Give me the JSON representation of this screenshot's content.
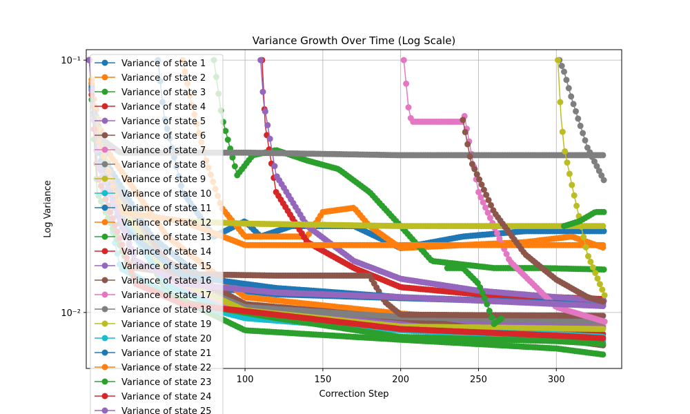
{
  "chart_data": {
    "type": "line",
    "title": "Variance Growth Over Time (Log Scale)",
    "xlabel": "Correction Step",
    "ylabel": "Log Variance",
    "y_scale": "log",
    "xlim": [
      -2,
      342
    ],
    "ylim": [
      0.006,
      0.11
    ],
    "grid": true,
    "legend_position": "upper-left",
    "x_ticks": [
      {
        "value": 100,
        "label": "100"
      },
      {
        "value": 150,
        "label": "150"
      },
      {
        "value": 200,
        "label": "200"
      },
      {
        "value": 250,
        "label": "250"
      },
      {
        "value": 300,
        "label": "300"
      }
    ],
    "y_ticks": [
      {
        "value": 0.1,
        "label": "10⁻¹"
      },
      {
        "value": 0.01,
        "label": "10⁻²"
      }
    ],
    "series": [
      {
        "name": "Variance of state 1",
        "color": "#1f77b4",
        "points": [
          [
            0,
            0.1
          ],
          [
            2,
            0.07
          ],
          [
            10,
            0.04
          ],
          [
            40,
            0.02
          ],
          [
            80,
            0.0125
          ],
          [
            120,
            0.0118
          ],
          [
            200,
            0.0114
          ],
          [
            331,
            0.0108
          ]
        ]
      },
      {
        "name": "Variance of state 2",
        "color": "#ff7f0e",
        "points": [
          [
            0,
            0.1
          ],
          [
            3,
            0.07
          ],
          [
            10,
            0.045
          ],
          [
            50,
            0.02
          ],
          [
            100,
            0.0115
          ],
          [
            200,
            0.0099
          ],
          [
            331,
            0.0088
          ]
        ]
      },
      {
        "name": "Variance of state 3",
        "color": "#2ca02c",
        "points": [
          [
            0,
            0.1
          ],
          [
            3,
            0.06
          ],
          [
            15,
            0.03
          ],
          [
            50,
            0.012
          ],
          [
            100,
            0.0085
          ],
          [
            200,
            0.0078
          ],
          [
            300,
            0.0072
          ],
          [
            331,
            0.0068
          ]
        ]
      },
      {
        "name": "Variance of state 4",
        "color": "#d62728",
        "points": [
          [
            0,
            0.1
          ],
          [
            3,
            0.065
          ],
          [
            15,
            0.03
          ],
          [
            50,
            0.015
          ],
          [
            100,
            0.0105
          ],
          [
            200,
            0.0088
          ],
          [
            331,
            0.0082
          ]
        ]
      },
      {
        "name": "Variance of state 5",
        "color": "#9467bd",
        "points": [
          [
            0,
            0.1
          ],
          [
            3,
            0.06
          ],
          [
            15,
            0.03
          ],
          [
            50,
            0.014
          ],
          [
            100,
            0.0105
          ],
          [
            200,
            0.0092
          ],
          [
            331,
            0.0087
          ]
        ]
      },
      {
        "name": "Variance of state 6",
        "color": "#8c564b",
        "points": [
          [
            0,
            0.1
          ],
          [
            3,
            0.065
          ],
          [
            15,
            0.03
          ],
          [
            50,
            0.016
          ],
          [
            100,
            0.0108
          ],
          [
            200,
            0.0095
          ],
          [
            331,
            0.0074
          ]
        ]
      },
      {
        "name": "Variance of state 7",
        "color": "#e377c2",
        "points": [
          [
            0,
            0.1
          ],
          [
            3,
            0.06
          ],
          [
            15,
            0.028
          ],
          [
            50,
            0.013
          ],
          [
            100,
            0.01
          ],
          [
            200,
            0.0088
          ],
          [
            331,
            0.0078
          ]
        ]
      },
      {
        "name": "Variance of state 8",
        "color": "#7f7f7f",
        "points": [
          [
            0,
            0.1
          ],
          [
            3,
            0.065
          ],
          [
            15,
            0.033
          ],
          [
            50,
            0.014
          ],
          [
            100,
            0.0105
          ],
          [
            200,
            0.0096
          ],
          [
            331,
            0.0092
          ]
        ]
      },
      {
        "name": "Variance of state 9",
        "color": "#bcbd22",
        "points": [
          [
            0,
            0.1
          ],
          [
            3,
            0.065
          ],
          [
            15,
            0.03
          ],
          [
            50,
            0.014
          ],
          [
            100,
            0.0102
          ],
          [
            200,
            0.0088
          ],
          [
            331,
            0.0086
          ]
        ]
      },
      {
        "name": "Variance of state 10",
        "color": "#17becf",
        "points": [
          [
            0,
            0.1
          ],
          [
            3,
            0.06
          ],
          [
            15,
            0.027
          ],
          [
            50,
            0.0128
          ],
          [
            100,
            0.0095
          ],
          [
            200,
            0.0085
          ],
          [
            331,
            0.0077
          ]
        ]
      },
      {
        "name": "Variance of state 11",
        "color": "#1f77b4",
        "points": [
          [
            44,
            0.1
          ],
          [
            48,
            0.06
          ],
          [
            60,
            0.03
          ],
          [
            80,
            0.02
          ],
          [
            100,
            0.023
          ],
          [
            110,
            0.02
          ],
          [
            130,
            0.022
          ],
          [
            170,
            0.022
          ],
          [
            200,
            0.018
          ],
          [
            240,
            0.02
          ],
          [
            280,
            0.021
          ],
          [
            331,
            0.021
          ]
        ]
      },
      {
        "name": "Variance of state 12",
        "color": "#ff7f0e",
        "points": [
          [
            60,
            0.1
          ],
          [
            65,
            0.07
          ],
          [
            75,
            0.04
          ],
          [
            85,
            0.026
          ],
          [
            100,
            0.02
          ],
          [
            140,
            0.02
          ],
          [
            150,
            0.025
          ],
          [
            170,
            0.026
          ],
          [
            180,
            0.022
          ],
          [
            200,
            0.018
          ],
          [
            280,
            0.019
          ],
          [
            310,
            0.02
          ],
          [
            331,
            0.018
          ]
        ]
      },
      {
        "name": "Variance of state 13",
        "color": "#2ca02c",
        "points": [
          [
            80,
            0.1
          ],
          [
            85,
            0.06
          ],
          [
            95,
            0.035
          ],
          [
            105,
            0.042
          ],
          [
            120,
            0.044
          ],
          [
            140,
            0.04
          ],
          [
            160,
            0.037
          ],
          [
            180,
            0.03
          ],
          [
            200,
            0.022
          ],
          [
            220,
            0.016
          ],
          [
            260,
            0.015
          ],
          [
            290,
            0.015
          ],
          [
            331,
            0.0148
          ]
        ]
      },
      {
        "name": "Variance of state 14",
        "color": "#d62728",
        "points": [
          [
            111,
            0.1
          ],
          [
            113,
            0.055
          ],
          [
            120,
            0.03
          ],
          [
            140,
            0.019
          ],
          [
            170,
            0.015
          ],
          [
            200,
            0.0126
          ],
          [
            250,
            0.0118
          ],
          [
            300,
            0.0115
          ],
          [
            331,
            0.0113
          ]
        ]
      },
      {
        "name": "Variance of state 15",
        "color": "#9467bd",
        "points": [
          [
            110,
            0.1
          ],
          [
            112,
            0.068
          ],
          [
            120,
            0.035
          ],
          [
            140,
            0.022
          ],
          [
            170,
            0.016
          ],
          [
            200,
            0.0136
          ],
          [
            250,
            0.0122
          ],
          [
            300,
            0.0115
          ],
          [
            331,
            0.0111
          ]
        ]
      },
      {
        "name": "Variance of state 16",
        "color": "#8c564b",
        "points": [
          [
            0,
            0.1
          ],
          [
            5,
            0.05
          ],
          [
            30,
            0.015
          ],
          [
            60,
            0.0142
          ],
          [
            120,
            0.014
          ],
          [
            180,
            0.014
          ],
          [
            190,
            0.011
          ],
          [
            200,
            0.0098
          ],
          [
            331,
            0.0097
          ]
        ]
      },
      {
        "name": "Variance of state 17",
        "color": "#e377c2",
        "points": [
          [
            202,
            0.1
          ],
          [
            205,
            0.065
          ],
          [
            207,
            0.057
          ],
          [
            240,
            0.057
          ],
          [
            241,
            0.06
          ],
          [
            250,
            0.03
          ],
          [
            270,
            0.016
          ],
          [
            300,
            0.0105
          ],
          [
            331,
            0.0092
          ]
        ]
      },
      {
        "name": "Variance of state 18",
        "color": "#7f7f7f",
        "points": [
          [
            0,
            0.1
          ],
          [
            5,
            0.05
          ],
          [
            20,
            0.043
          ],
          [
            100,
            0.043
          ],
          [
            200,
            0.042
          ],
          [
            331,
            0.042
          ]
        ]
      },
      {
        "name": "Variance of state 19",
        "color": "#bcbd22",
        "points": [
          [
            0,
            0.1
          ],
          [
            5,
            0.05
          ],
          [
            20,
            0.025
          ],
          [
            60,
            0.023
          ],
          [
            100,
            0.0225
          ],
          [
            200,
            0.022
          ],
          [
            300,
            0.022
          ],
          [
            331,
            0.022
          ]
        ]
      },
      {
        "name": "Variance of state 20",
        "color": "#17becf",
        "points": [
          [
            0,
            0.1
          ],
          [
            5,
            0.04
          ],
          [
            20,
            0.015
          ],
          [
            60,
            0.011
          ],
          [
            100,
            0.0095
          ],
          [
            200,
            0.0085
          ],
          [
            300,
            0.0082
          ],
          [
            331,
            0.008
          ]
        ]
      },
      {
        "name": "Variance of state 21",
        "color": "#1f77b4",
        "points": [
          [
            0,
            0.1
          ],
          [
            5,
            0.045
          ],
          [
            20,
            0.022
          ],
          [
            60,
            0.014
          ],
          [
            120,
            0.0125
          ],
          [
            200,
            0.0115
          ],
          [
            300,
            0.0109
          ],
          [
            331,
            0.0106
          ]
        ]
      },
      {
        "name": "Variance of state 22",
        "color": "#ff7f0e",
        "points": [
          [
            0,
            0.1
          ],
          [
            5,
            0.05
          ],
          [
            20,
            0.025
          ],
          [
            60,
            0.023
          ],
          [
            100,
            0.0185
          ],
          [
            200,
            0.0185
          ],
          [
            331,
            0.0185
          ]
        ]
      },
      {
        "name": "Variance of state 23",
        "color": "#2ca02c",
        "points": [
          [
            0,
            0.1
          ],
          [
            5,
            0.03
          ],
          [
            30,
            0.013
          ],
          [
            60,
            0.011
          ],
          [
            120,
            0.0095
          ],
          [
            200,
            0.008
          ],
          [
            300,
            0.0077
          ],
          [
            331,
            0.0075
          ]
        ]
      },
      {
        "name": "Variance of state 24",
        "color": "#d62728",
        "points": [
          [
            0,
            0.1
          ],
          [
            5,
            0.035
          ],
          [
            30,
            0.013
          ],
          [
            60,
            0.0108
          ],
          [
            120,
            0.0098
          ],
          [
            200,
            0.0086
          ],
          [
            300,
            0.0081
          ],
          [
            331,
            0.0079
          ]
        ]
      },
      {
        "name": "Variance of state 25",
        "color": "#9467bd",
        "points": [
          [
            0,
            0.1
          ],
          [
            5,
            0.04
          ],
          [
            30,
            0.016
          ],
          [
            60,
            0.013
          ],
          [
            120,
            0.012
          ],
          [
            200,
            0.0115
          ],
          [
            300,
            0.0108
          ],
          [
            331,
            0.0106
          ]
        ]
      },
      {
        "name": "",
        "color": "#8c564b",
        "points": [
          [
            240,
            0.058
          ],
          [
            245,
            0.04
          ],
          [
            260,
            0.025
          ],
          [
            280,
            0.017
          ],
          [
            300,
            0.0135
          ],
          [
            320,
            0.0115
          ],
          [
            331,
            0.011
          ]
        ]
      },
      {
        "name": "",
        "color": "#7f7f7f",
        "points": [
          [
            302,
            0.1
          ],
          [
            305,
            0.09
          ],
          [
            310,
            0.07
          ],
          [
            320,
            0.045
          ],
          [
            331,
            0.033
          ]
        ]
      },
      {
        "name": "",
        "color": "#bcbd22",
        "points": [
          [
            301,
            0.1
          ],
          [
            303,
            0.06
          ],
          [
            305,
            0.045
          ],
          [
            310,
            0.032
          ],
          [
            320,
            0.017
          ],
          [
            331,
            0.0117
          ]
        ]
      },
      {
        "name": "",
        "color": "#2ca02c",
        "points": [
          [
            230,
            0.015
          ],
          [
            240,
            0.015
          ],
          [
            250,
            0.013
          ],
          [
            255,
            0.011
          ],
          [
            260,
            0.009
          ],
          [
            265,
            0.0095
          ]
        ]
      },
      {
        "name": "",
        "color": "#2ca02c",
        "points": [
          [
            305,
            0.022
          ],
          [
            315,
            0.023
          ],
          [
            325,
            0.025
          ],
          [
            331,
            0.025
          ]
        ]
      }
    ]
  }
}
